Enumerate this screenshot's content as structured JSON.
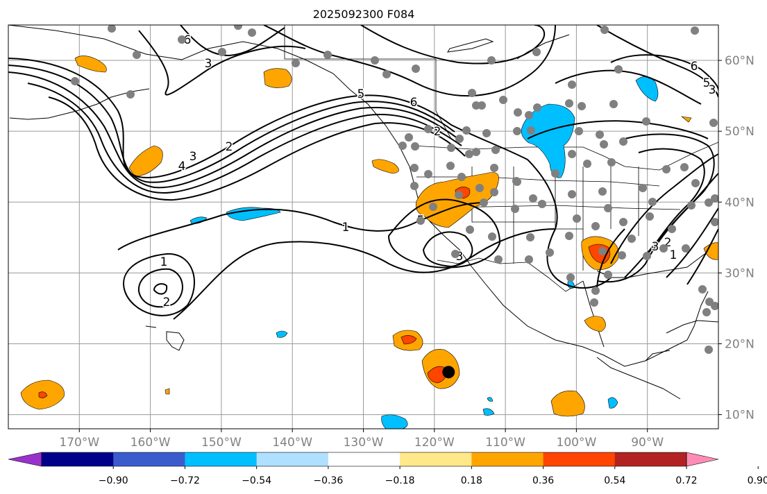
{
  "title": "2025092300 F084",
  "map": {
    "lon_range": [
      -180,
      -80
    ],
    "lat_range": [
      8,
      65
    ],
    "lon_ticks": [
      "170°W",
      "160°W",
      "150°W",
      "140°W",
      "130°W",
      "120°W",
      "110°W",
      "100°W",
      "90°W"
    ],
    "lat_ticks": [
      "10°N",
      "20°N",
      "30°N",
      "40°N",
      "50°N",
      "60°N"
    ],
    "contour_labels": [
      "6",
      "5",
      "4",
      "3",
      "2",
      "1",
      "1",
      "2",
      "3",
      "6",
      "5",
      "3",
      "2",
      "3",
      "2",
      "1",
      "5",
      "3",
      "6"
    ],
    "marker": {
      "lon": -118,
      "lat": 16
    },
    "colors": {
      "orange": "#ffa500",
      "red": "#ff4500",
      "blue": "#00bfff",
      "gray": "#808080",
      "line": "#000000"
    }
  },
  "colorbar": {
    "tick_labels": [
      "−0.90",
      "−0.72",
      "−0.54",
      "−0.36",
      "−0.18",
      "0.18",
      "0.36",
      "0.54",
      "0.72",
      "0.90"
    ],
    "colors": [
      "#9932cc",
      "#00008b",
      "#3b5bcc",
      "#00bfff",
      "#b0e0ff",
      "#ffffff",
      "#ffe88a",
      "#ffa500",
      "#ff4500",
      "#b22222",
      "#ff8cb4"
    ]
  }
}
